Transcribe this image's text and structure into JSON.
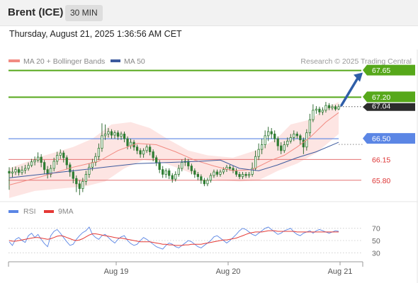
{
  "header": {
    "instrument": "Brent (ICE)",
    "timeframe": "30 MIN",
    "datetime": "Thursday, August 21, 2025 1:36:56 AM CET"
  },
  "colors": {
    "ma20": "#f28b82",
    "ma50": "#3d5a9e",
    "bollinger_fill": "#fde0de",
    "candle": "#2e7d32",
    "resistance": "#56a81a",
    "pivot": "#5b86e5",
    "support": "#e57373",
    "current": "#2c2c2c",
    "arrow": "#2f5ea8",
    "rsi": "#5b86e5",
    "rsi_ma": "#e53935"
  },
  "chart_data": [
    {
      "type": "line",
      "legend": [
        "MA 20 + Bollinger Bands",
        "MA 50"
      ],
      "legend_position": "top-left",
      "credit": "Research © 2025 Trading Central",
      "x_ticks": [
        "Aug 19",
        "Aug 20",
        "Aug 21"
      ],
      "ylim": [
        65.38,
        67.86
      ],
      "levels": [
        {
          "value": 67.65,
          "label": "67.65",
          "kind": "resistance"
        },
        {
          "value": 67.2,
          "label": "67.20",
          "kind": "resistance"
        },
        {
          "value": 67.04,
          "label": "67.04",
          "kind": "current"
        },
        {
          "value": 66.5,
          "label": "66.50",
          "kind": "pivot"
        },
        {
          "value": 66.15,
          "label": "66.15",
          "kind": "support"
        },
        {
          "value": 65.8,
          "label": "65.80",
          "kind": "support"
        }
      ],
      "arrow": {
        "from": 67.04,
        "to": 67.65,
        "direction": "up"
      },
      "candles": [
        [
          65.95,
          65.92,
          66.02,
          65.64
        ],
        [
          65.92,
          65.94,
          66.02,
          65.85
        ],
        [
          65.94,
          65.98,
          66.03,
          65.89
        ],
        [
          65.98,
          65.93,
          66.02,
          65.88
        ],
        [
          65.93,
          65.97,
          66.04,
          65.89
        ],
        [
          65.97,
          66.0,
          66.06,
          65.91
        ],
        [
          66.0,
          66.05,
          66.1,
          65.96
        ],
        [
          66.05,
          66.11,
          66.16,
          66.02
        ],
        [
          66.11,
          66.14,
          66.2,
          66.05
        ],
        [
          66.14,
          66.19,
          66.27,
          66.1
        ],
        [
          66.19,
          66.1,
          66.24,
          66.02
        ],
        [
          66.1,
          65.98,
          66.14,
          65.9
        ],
        [
          65.98,
          65.9,
          66.04,
          65.83
        ],
        [
          65.9,
          66.0,
          66.06,
          65.85
        ],
        [
          66.0,
          66.12,
          66.18,
          65.95
        ],
        [
          66.12,
          66.22,
          66.28,
          66.06
        ],
        [
          66.22,
          66.26,
          66.32,
          66.16
        ],
        [
          66.26,
          66.18,
          66.3,
          66.1
        ],
        [
          66.18,
          66.06,
          66.22,
          65.98
        ],
        [
          66.06,
          65.94,
          66.1,
          65.86
        ],
        [
          65.94,
          65.83,
          65.98,
          65.75
        ],
        [
          65.83,
          65.74,
          65.88,
          65.6
        ],
        [
          65.74,
          65.66,
          65.8,
          65.55
        ],
        [
          65.66,
          65.78,
          65.84,
          65.6
        ],
        [
          65.78,
          65.9,
          65.96,
          65.72
        ],
        [
          65.9,
          66.02,
          66.08,
          65.84
        ],
        [
          66.02,
          66.1,
          66.16,
          65.96
        ],
        [
          66.1,
          66.2,
          66.26,
          66.04
        ],
        [
          66.2,
          66.34,
          66.42,
          66.14
        ],
        [
          66.34,
          66.55,
          66.76,
          66.28
        ],
        [
          66.55,
          66.58,
          66.74,
          66.48
        ],
        [
          66.58,
          66.62,
          66.68,
          66.52
        ],
        [
          66.62,
          66.56,
          66.66,
          66.5
        ],
        [
          66.56,
          66.6,
          66.64,
          66.5
        ],
        [
          66.6,
          66.54,
          66.64,
          66.48
        ],
        [
          66.54,
          66.58,
          66.62,
          66.48
        ],
        [
          66.58,
          66.5,
          66.62,
          66.44
        ],
        [
          66.5,
          66.38,
          66.54,
          66.32
        ],
        [
          66.38,
          66.44,
          66.5,
          66.33
        ],
        [
          66.44,
          66.36,
          66.48,
          66.3
        ],
        [
          66.36,
          66.3,
          66.4,
          66.24
        ],
        [
          66.3,
          66.24,
          66.34,
          66.18
        ],
        [
          66.24,
          66.3,
          66.34,
          66.18
        ],
        [
          66.3,
          66.36,
          66.4,
          66.26
        ],
        [
          66.36,
          66.28,
          66.4,
          66.22
        ],
        [
          66.28,
          66.18,
          66.32,
          66.12
        ],
        [
          66.18,
          66.1,
          66.22,
          66.04
        ],
        [
          66.1,
          65.98,
          66.14,
          65.92
        ],
        [
          65.98,
          65.9,
          66.04,
          65.84
        ],
        [
          65.9,
          65.96,
          66.0,
          65.84
        ],
        [
          65.96,
          65.88,
          66.0,
          65.82
        ],
        [
          65.88,
          65.82,
          65.92,
          65.76
        ],
        [
          65.82,
          65.9,
          65.95,
          65.78
        ],
        [
          65.9,
          66.0,
          66.06,
          65.86
        ],
        [
          66.0,
          66.1,
          66.15,
          65.95
        ],
        [
          66.1,
          66.12,
          66.18,
          66.04
        ],
        [
          66.12,
          66.04,
          66.16,
          65.98
        ],
        [
          66.04,
          65.96,
          66.08,
          65.9
        ],
        [
          65.96,
          65.9,
          66.0,
          65.84
        ],
        [
          65.9,
          65.86,
          65.94,
          65.8
        ],
        [
          65.86,
          65.8,
          65.9,
          65.74
        ],
        [
          65.8,
          65.74,
          65.84,
          65.7
        ],
        [
          65.74,
          65.8,
          65.84,
          65.7
        ],
        [
          65.8,
          65.88,
          65.92,
          65.76
        ],
        [
          65.88,
          65.94,
          65.98,
          65.84
        ],
        [
          65.94,
          65.9,
          65.98,
          65.86
        ],
        [
          65.9,
          65.94,
          65.98,
          65.86
        ],
        [
          65.94,
          65.98,
          66.02,
          65.9
        ],
        [
          65.98,
          66.02,
          66.06,
          65.94
        ],
        [
          66.02,
          66.0,
          66.06,
          65.96
        ],
        [
          66.0,
          65.96,
          66.04,
          65.92
        ],
        [
          65.96,
          65.9,
          66.0,
          65.86
        ],
        [
          65.9,
          65.86,
          65.94,
          65.82
        ],
        [
          65.86,
          65.9,
          65.94,
          65.82
        ],
        [
          65.9,
          65.88,
          65.94,
          65.84
        ],
        [
          65.88,
          65.9,
          65.94,
          65.84
        ],
        [
          65.9,
          66.0,
          66.1,
          65.86
        ],
        [
          66.0,
          66.2,
          66.3,
          65.96
        ],
        [
          66.2,
          66.32,
          66.42,
          66.14
        ],
        [
          66.32,
          66.4,
          66.5,
          66.24
        ],
        [
          66.4,
          66.55,
          66.64,
          66.34
        ],
        [
          66.55,
          66.62,
          66.7,
          66.46
        ],
        [
          66.62,
          66.58,
          66.68,
          66.5
        ],
        [
          66.58,
          66.5,
          66.64,
          66.44
        ],
        [
          66.5,
          66.38,
          66.54,
          66.3
        ],
        [
          66.38,
          66.3,
          66.44,
          66.24
        ],
        [
          66.3,
          66.4,
          66.46,
          66.26
        ],
        [
          66.4,
          66.46,
          66.52,
          66.36
        ],
        [
          66.46,
          66.52,
          66.58,
          66.42
        ],
        [
          66.52,
          66.58,
          66.64,
          66.46
        ],
        [
          66.58,
          66.55,
          66.62,
          66.5
        ],
        [
          66.55,
          66.48,
          66.58,
          66.4
        ],
        [
          66.48,
          66.36,
          66.52,
          66.24
        ],
        [
          66.36,
          66.6,
          66.66,
          66.3
        ],
        [
          66.6,
          66.82,
          66.92,
          66.54
        ],
        [
          66.82,
          66.98,
          67.08,
          66.78
        ],
        [
          66.98,
          67.0,
          67.05,
          66.92
        ],
        [
          67.0,
          66.95,
          67.04,
          66.9
        ],
        [
          66.95,
          66.98,
          67.03,
          66.9
        ],
        [
          66.98,
          67.06,
          67.12,
          66.94
        ],
        [
          67.06,
          67.02,
          67.1,
          66.98
        ],
        [
          67.02,
          67.04,
          67.08,
          66.98
        ],
        [
          67.04,
          67.0,
          67.07,
          66.97
        ],
        [
          67.0,
          67.04,
          67.08,
          66.98
        ]
      ],
      "ma20": [
        [
          0,
          65.72
        ],
        [
          10,
          65.86
        ],
        [
          20,
          66.02
        ],
        [
          28,
          66.12
        ],
        [
          34,
          66.3
        ],
        [
          40,
          66.42
        ],
        [
          46,
          66.4
        ],
        [
          52,
          66.28
        ],
        [
          58,
          66.14
        ],
        [
          64,
          66.04
        ],
        [
          70,
          65.96
        ],
        [
          76,
          65.98
        ],
        [
          82,
          66.14
        ],
        [
          86,
          66.22
        ],
        [
          90,
          66.36
        ],
        [
          94,
          66.52
        ],
        [
          99,
          66.78
        ],
        [
          103,
          66.94
        ]
      ],
      "bollinger_upper": [
        [
          0,
          66.0
        ],
        [
          10,
          66.2
        ],
        [
          20,
          66.36
        ],
        [
          26,
          66.5
        ],
        [
          32,
          66.74
        ],
        [
          38,
          66.78
        ],
        [
          44,
          66.68
        ],
        [
          50,
          66.48
        ],
        [
          56,
          66.3
        ],
        [
          62,
          66.22
        ],
        [
          70,
          66.18
        ],
        [
          78,
          66.32
        ],
        [
          84,
          66.52
        ],
        [
          88,
          66.74
        ],
        [
          94,
          66.82
        ],
        [
          99,
          67.02
        ],
        [
          103,
          67.12
        ]
      ],
      "bollinger_lower": [
        [
          0,
          65.5
        ],
        [
          8,
          65.62
        ],
        [
          16,
          65.66
        ],
        [
          24,
          65.7
        ],
        [
          30,
          65.78
        ],
        [
          36,
          66.0
        ],
        [
          42,
          66.14
        ],
        [
          48,
          66.1
        ],
        [
          54,
          65.98
        ],
        [
          60,
          65.86
        ],
        [
          66,
          65.8
        ],
        [
          72,
          65.78
        ],
        [
          78,
          65.8
        ],
        [
          84,
          65.96
        ],
        [
          90,
          66.08
        ],
        [
          96,
          66.26
        ],
        [
          103,
          66.58
        ]
      ],
      "ma50": [
        [
          0,
          65.84
        ],
        [
          10,
          65.9
        ],
        [
          20,
          65.96
        ],
        [
          30,
          66.02
        ],
        [
          40,
          66.08
        ],
        [
          50,
          66.1
        ],
        [
          60,
          66.12
        ],
        [
          66,
          66.14
        ],
        [
          72,
          66.0
        ],
        [
          78,
          65.96
        ],
        [
          84,
          66.06
        ],
        [
          90,
          66.18
        ],
        [
          96,
          66.28
        ],
        [
          103,
          66.44
        ]
      ]
    },
    {
      "type": "line",
      "legend": [
        "RSI",
        "9MA"
      ],
      "legend_position": "top-left",
      "y_ticks": [
        "70",
        "50",
        "30"
      ],
      "ylim": [
        20,
        80
      ],
      "series": [
        {
          "name": "RSI",
          "values": [
            48,
            42,
            52,
            55,
            50,
            47,
            58,
            62,
            55,
            60,
            52,
            45,
            40,
            58,
            65,
            68,
            62,
            55,
            48,
            42,
            44,
            52,
            58,
            63,
            66,
            72,
            60,
            55,
            52,
            58,
            60,
            55,
            50,
            46,
            52,
            56,
            58,
            50,
            45,
            42,
            44,
            50,
            55,
            52,
            48,
            44,
            40,
            38,
            36,
            42,
            46,
            44,
            40,
            38,
            42,
            46,
            50,
            48,
            44,
            40,
            38,
            42,
            46,
            50,
            56,
            58,
            54,
            50,
            46,
            50,
            55,
            60,
            66,
            70,
            68,
            64,
            60,
            58,
            62,
            66,
            70,
            72,
            68,
            64,
            60,
            62,
            66,
            68,
            70,
            64,
            60,
            58,
            62,
            64,
            66,
            62,
            66,
            68,
            66,
            64,
            62,
            64,
            66,
            65
          ]
        },
        {
          "name": "9MA",
          "values": [
            50,
            49,
            49,
            50,
            51,
            52,
            53,
            54,
            55,
            55,
            54,
            53,
            52,
            53,
            55,
            57,
            58,
            57,
            55,
            53,
            51,
            50,
            51,
            53,
            56,
            59,
            61,
            61,
            60,
            59,
            58,
            57,
            56,
            55,
            54,
            54,
            53,
            52,
            51,
            50,
            49,
            48,
            48,
            48,
            48,
            47,
            46,
            45,
            44,
            44,
            43,
            43,
            42,
            42,
            42,
            43,
            43,
            44,
            44,
            44,
            44,
            45,
            46,
            47,
            48,
            49,
            50,
            51,
            51,
            52,
            53,
            54,
            56,
            58,
            60,
            62,
            63,
            64,
            64,
            64,
            65,
            66,
            66,
            66,
            65,
            65,
            65,
            65,
            65,
            65,
            64,
            64,
            64,
            64,
            64,
            64,
            64,
            64,
            64,
            64,
            64,
            64,
            64,
            64
          ]
        }
      ]
    }
  ]
}
